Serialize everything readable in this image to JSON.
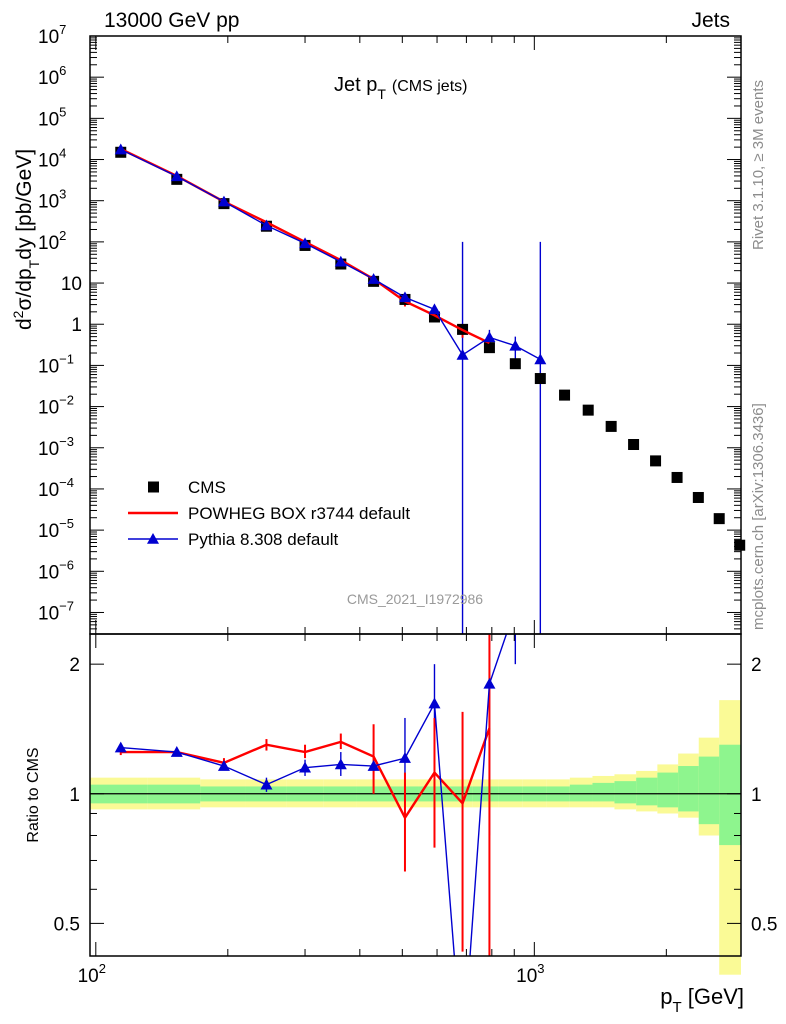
{
  "header": {
    "left": "13000 GeV pp",
    "right": "Jets"
  },
  "side_labels": {
    "top": "Rivet 3.1.10, ≥ 3M events",
    "bottom": "mcplots.cern.ch [arXiv:1306.3436]"
  },
  "colors": {
    "data": "#000000",
    "powheg": "#ff0000",
    "pythia": "#0000d0",
    "band_inner": "#8ef58e",
    "band_outer": "#fafa96"
  },
  "chart_data": [
    {
      "type": "scatter",
      "panel": "main",
      "title_main": "Jet p",
      "title_sub": "T",
      "title_extra": "(CMS jets)",
      "watermark": "CMS_2021_I1972986",
      "ylabel": "d²σ/dp_T dy [pb/GeV]",
      "log_x": true,
      "log_y": true,
      "xlim": [
        97,
        2960
      ],
      "ylim": [
        3e-08,
        10000000.0
      ],
      "y_tick_labels": [
        "10^7",
        "10^6",
        "10^5",
        "10^4",
        "10^3",
        "10^2",
        "10",
        "1",
        "10^-1",
        "10^-2",
        "10^-3",
        "10^-4",
        "10^-5",
        "10^-6",
        "10^-7"
      ],
      "legend": {
        "position": "bottom-left",
        "entries": [
          "CMS",
          "POWHEG BOX r3744 default",
          "Pythia 8.308 default"
        ]
      },
      "series": [
        {
          "name": "CMS",
          "style": "square",
          "x": [
            114,
            153,
            196,
            245,
            300,
            362,
            430,
            507,
            592,
            686,
            790,
            905,
            1032,
            1172,
            1327,
            1497,
            1684,
            1890,
            2116,
            2366,
            2640,
            2940
          ],
          "y": [
            15000,
            3300,
            850,
            240,
            82,
            29,
            11,
            4.0,
            1.5,
            0.75,
            0.27,
            0.11,
            0.048,
            0.019,
            0.0082,
            0.0033,
            0.0012,
            0.00048,
            0.00019,
            6.2e-05,
            1.9e-05,
            4.3e-06
          ]
        },
        {
          "name": "POWHEG BOX r3744 default",
          "style": "line",
          "x": [
            114,
            153,
            196,
            245,
            300,
            362,
            430,
            507,
            592,
            686,
            790
          ],
          "y": [
            18000,
            4000,
            950,
            300,
            100,
            36,
            12.5,
            3.6,
            1.65,
            0.72,
            0.35
          ],
          "yerr": [
            500,
            100,
            25,
            10,
            3,
            1.5,
            0.6,
            0.9,
            0.4,
            0.25,
            0.12
          ]
        },
        {
          "name": "Pythia 8.308 default",
          "style": "triangle",
          "x": [
            114,
            153,
            196,
            245,
            300,
            362,
            430,
            507,
            592,
            686,
            790,
            905,
            1032
          ],
          "y": [
            17500,
            3900,
            950,
            250,
            92,
            33,
            12.5,
            4.5,
            2.3,
            0.18,
            0.48,
            0.3,
            0.14
          ],
          "yerr": [
            400,
            90,
            25,
            8,
            3,
            1.5,
            0.8,
            0.9,
            0.6,
            100,
            0.25,
            0.2,
            100
          ]
        }
      ]
    },
    {
      "type": "line",
      "panel": "ratio",
      "ylabel": "Ratio to CMS",
      "xlabel": "p_T [GeV]",
      "log_x": true,
      "log_y": true,
      "xlim": [
        97,
        2960
      ],
      "ylim": [
        0.42,
        2.35
      ],
      "x_tick_labels": [
        {
          "x": 100,
          "base": "10",
          "exp": "2"
        },
        {
          "x": 1000,
          "base": "10",
          "exp": "3"
        }
      ],
      "y_tick_labels": [
        "2",
        "1",
        "0.5"
      ],
      "bands": {
        "edges": [
          97,
          131,
          173,
          220,
          272,
          330,
          394,
          465,
          543,
          629,
          724,
          828,
          941,
          1067,
          1205,
          1357,
          1523,
          1707,
          1908,
          2128,
          2371,
          2640,
          2960
        ],
        "outer_lo": [
          0.92,
          0.92,
          0.93,
          0.93,
          0.93,
          0.93,
          0.93,
          0.93,
          0.93,
          0.93,
          0.93,
          0.93,
          0.93,
          0.93,
          0.93,
          0.93,
          0.92,
          0.91,
          0.9,
          0.88,
          0.8,
          0.38
        ],
        "outer_hi": [
          1.09,
          1.09,
          1.08,
          1.08,
          1.08,
          1.08,
          1.08,
          1.08,
          1.08,
          1.08,
          1.08,
          1.08,
          1.08,
          1.08,
          1.09,
          1.1,
          1.11,
          1.13,
          1.17,
          1.24,
          1.35,
          1.65
        ],
        "inner_lo": [
          0.95,
          0.95,
          0.96,
          0.96,
          0.96,
          0.96,
          0.96,
          0.96,
          0.96,
          0.96,
          0.96,
          0.96,
          0.96,
          0.96,
          0.96,
          0.96,
          0.95,
          0.94,
          0.93,
          0.91,
          0.85,
          0.76
        ],
        "inner_hi": [
          1.05,
          1.05,
          1.04,
          1.04,
          1.04,
          1.04,
          1.04,
          1.04,
          1.04,
          1.04,
          1.04,
          1.04,
          1.04,
          1.04,
          1.05,
          1.06,
          1.07,
          1.09,
          1.12,
          1.16,
          1.22,
          1.3
        ]
      },
      "series": [
        {
          "name": "POWHEG BOX r3744 default",
          "style": "line",
          "x": [
            114,
            153,
            196,
            245,
            300,
            362,
            430,
            507,
            592,
            686,
            790
          ],
          "y": [
            1.25,
            1.25,
            1.18,
            1.3,
            1.25,
            1.32,
            1.22,
            0.88,
            1.12,
            0.95,
            1.42
          ],
          "lo": [
            1.23,
            1.23,
            1.16,
            1.26,
            1.21,
            1.27,
            1.0,
            0.66,
            0.75,
            0.43,
            0.42
          ],
          "hi": [
            1.27,
            1.27,
            1.21,
            1.34,
            1.3,
            1.38,
            1.45,
            1.12,
            1.5,
            1.55,
            2.35
          ]
        },
        {
          "name": "Pythia 8.308 default",
          "style": "triangle",
          "x": [
            114,
            153,
            196,
            245,
            300,
            362,
            430,
            507,
            592,
            686,
            790,
            905
          ],
          "y": [
            1.28,
            1.25,
            1.16,
            1.05,
            1.15,
            1.17,
            1.16,
            1.21,
            1.62,
            0.24,
            1.8,
            2.7
          ],
          "lo": [
            1.26,
            1.23,
            1.14,
            1.01,
            1.1,
            1.1,
            1.05,
            0.95,
            1.3,
            0.42,
            0.8,
            2.0
          ],
          "hi": [
            1.3,
            1.27,
            1.18,
            1.09,
            1.2,
            1.25,
            1.3,
            1.5,
            2.0,
            0.42,
            2.35,
            2.35
          ]
        }
      ]
    }
  ]
}
